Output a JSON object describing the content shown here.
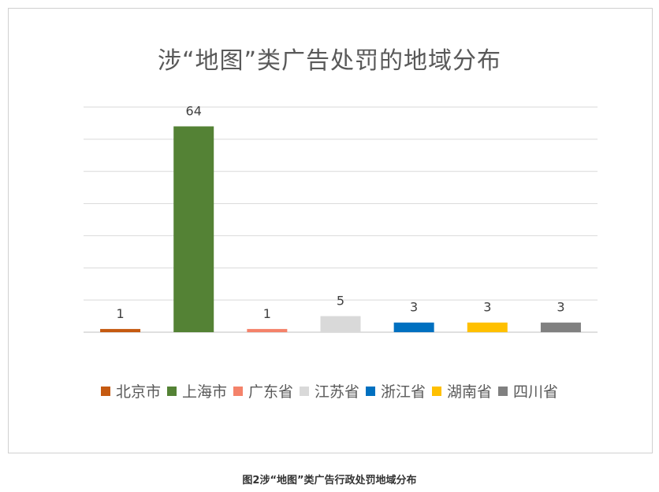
{
  "chart_data": {
    "type": "bar",
    "title": "涉“地图”类广告处罚的地域分布",
    "categories": [
      "北京市",
      "上海市",
      "广东省",
      "江苏省",
      "浙江省",
      "湖南省",
      "四川省"
    ],
    "values": [
      1,
      64,
      1,
      5,
      3,
      3,
      3
    ],
    "colors": [
      "#C55A11",
      "#548235",
      "#F4826A",
      "#D9D9D9",
      "#0070C0",
      "#FFC000",
      "#808080"
    ],
    "ylim": [
      0,
      70
    ],
    "ytick_step": 10,
    "grid": true,
    "legend_position": "bottom",
    "show_y_tick_labels": false
  },
  "caption": "图2涉“地图”类广告行政处罚地域分布"
}
